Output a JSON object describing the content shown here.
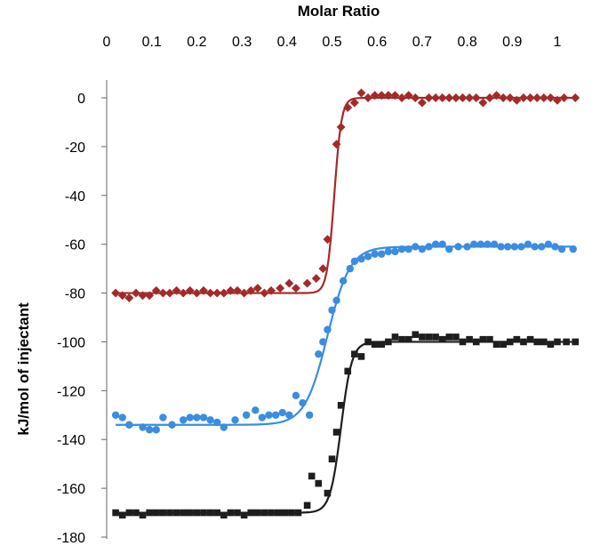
{
  "chart_data": {
    "type": "scatter",
    "title": "",
    "xlabel": "Molar Ratio",
    "ylabel": "kJ/mol of injectant",
    "x_axis_position": "top",
    "xlim": [
      0,
      1.05
    ],
    "ylim": [
      -180,
      5
    ],
    "x_ticks": [
      0,
      0.1,
      0.2,
      0.3,
      0.4,
      0.5,
      0.6,
      0.7,
      0.8,
      0.9,
      1
    ],
    "x_tick_labels": [
      "0",
      "0.1",
      "0.2",
      "0.3",
      "0.4",
      "0.5",
      "0.6",
      "0.7",
      "0.8",
      "0.9",
      "1"
    ],
    "y_ticks": [
      0,
      -20,
      -40,
      -60,
      -80,
      -100,
      -120,
      -140,
      -160,
      -180
    ],
    "y_tick_labels": [
      "0",
      "-20",
      "-40",
      "-60",
      "-80",
      "-100",
      "-120",
      "-140",
      "-160",
      "-180"
    ],
    "grid": false,
    "legend": "none",
    "series": [
      {
        "marker": "diamond",
        "color": "#a32a28",
        "fit": {
          "low": -80,
          "high": 0,
          "mid": 0.505,
          "width": 0.008
        },
        "points": [
          [
            0.02,
            -80
          ],
          [
            0.035,
            -81
          ],
          [
            0.05,
            -82
          ],
          [
            0.065,
            -80
          ],
          [
            0.08,
            -81
          ],
          [
            0.095,
            -81
          ],
          [
            0.11,
            -79
          ],
          [
            0.125,
            -80
          ],
          [
            0.14,
            -80
          ],
          [
            0.155,
            -79
          ],
          [
            0.17,
            -80
          ],
          [
            0.185,
            -79
          ],
          [
            0.2,
            -80
          ],
          [
            0.215,
            -79
          ],
          [
            0.23,
            -80
          ],
          [
            0.245,
            -80
          ],
          [
            0.26,
            -80
          ],
          [
            0.275,
            -79
          ],
          [
            0.29,
            -79
          ],
          [
            0.305,
            -80
          ],
          [
            0.32,
            -79
          ],
          [
            0.335,
            -78
          ],
          [
            0.35,
            -80
          ],
          [
            0.365,
            -79
          ],
          [
            0.385,
            -78
          ],
          [
            0.405,
            -76
          ],
          [
            0.42,
            -78
          ],
          [
            0.445,
            -76
          ],
          [
            0.465,
            -74
          ],
          [
            0.48,
            -70
          ],
          [
            0.49,
            -58
          ],
          [
            0.51,
            -19
          ],
          [
            0.52,
            -12
          ],
          [
            0.535,
            -4
          ],
          [
            0.55,
            -2
          ],
          [
            0.565,
            2
          ],
          [
            0.58,
            0
          ],
          [
            0.595,
            1
          ],
          [
            0.61,
            1
          ],
          [
            0.625,
            1
          ],
          [
            0.64,
            1
          ],
          [
            0.655,
            0
          ],
          [
            0.67,
            1
          ],
          [
            0.685,
            0
          ],
          [
            0.7,
            -2
          ],
          [
            0.715,
            0
          ],
          [
            0.73,
            0
          ],
          [
            0.745,
            0
          ],
          [
            0.76,
            0
          ],
          [
            0.775,
            0
          ],
          [
            0.79,
            0
          ],
          [
            0.805,
            0
          ],
          [
            0.82,
            0
          ],
          [
            0.835,
            -2
          ],
          [
            0.85,
            0
          ],
          [
            0.865,
            1
          ],
          [
            0.88,
            0
          ],
          [
            0.895,
            0
          ],
          [
            0.91,
            -1
          ],
          [
            0.925,
            0
          ],
          [
            0.94,
            0
          ],
          [
            0.955,
            0
          ],
          [
            0.97,
            0
          ],
          [
            0.985,
            0
          ],
          [
            1.0,
            -1
          ],
          [
            1.015,
            0
          ],
          [
            1.04,
            0
          ]
        ]
      },
      {
        "marker": "circle",
        "color": "#3a8de0",
        "fit": {
          "low": -134,
          "high": -61,
          "mid": 0.49,
          "width": 0.025
        },
        "points": [
          [
            0.02,
            -130
          ],
          [
            0.035,
            -131
          ],
          [
            0.05,
            -134
          ],
          [
            0.08,
            -135
          ],
          [
            0.095,
            -136
          ],
          [
            0.11,
            -136
          ],
          [
            0.125,
            -131
          ],
          [
            0.145,
            -134
          ],
          [
            0.17,
            -132
          ],
          [
            0.185,
            -131
          ],
          [
            0.2,
            -131
          ],
          [
            0.215,
            -131
          ],
          [
            0.23,
            -132
          ],
          [
            0.245,
            -133
          ],
          [
            0.26,
            -135
          ],
          [
            0.285,
            -132
          ],
          [
            0.31,
            -130
          ],
          [
            0.33,
            -128
          ],
          [
            0.345,
            -131
          ],
          [
            0.36,
            -130
          ],
          [
            0.375,
            -130
          ],
          [
            0.39,
            -129
          ],
          [
            0.405,
            -130
          ],
          [
            0.42,
            -122
          ],
          [
            0.435,
            -125
          ],
          [
            0.45,
            -130
          ],
          [
            0.47,
            -105
          ],
          [
            0.48,
            -100
          ],
          [
            0.49,
            -95
          ],
          [
            0.5,
            -87
          ],
          [
            0.51,
            -83
          ],
          [
            0.525,
            -75
          ],
          [
            0.54,
            -70
          ],
          [
            0.55,
            -67
          ],
          [
            0.565,
            -66
          ],
          [
            0.58,
            -65
          ],
          [
            0.595,
            -64
          ],
          [
            0.61,
            -64
          ],
          [
            0.625,
            -63
          ],
          [
            0.64,
            -63
          ],
          [
            0.655,
            -62
          ],
          [
            0.67,
            -62
          ],
          [
            0.685,
            -61
          ],
          [
            0.7,
            -62
          ],
          [
            0.715,
            -61
          ],
          [
            0.73,
            -60
          ],
          [
            0.745,
            -60
          ],
          [
            0.76,
            -62
          ],
          [
            0.78,
            -61
          ],
          [
            0.8,
            -61
          ],
          [
            0.815,
            -60
          ],
          [
            0.83,
            -60
          ],
          [
            0.845,
            -60
          ],
          [
            0.86,
            -60
          ],
          [
            0.875,
            -61
          ],
          [
            0.89,
            -61
          ],
          [
            0.905,
            -61
          ],
          [
            0.92,
            -61
          ],
          [
            0.935,
            -60
          ],
          [
            0.95,
            -61
          ],
          [
            0.965,
            -61
          ],
          [
            0.98,
            -60
          ],
          [
            0.995,
            -61
          ],
          [
            1.01,
            -62
          ],
          [
            1.035,
            -62
          ]
        ]
      },
      {
        "marker": "square",
        "color": "#1e1e1e",
        "fit": {
          "low": -170,
          "high": -100,
          "mid": 0.52,
          "width": 0.012
        },
        "points": [
          [
            0.02,
            -170
          ],
          [
            0.035,
            -171
          ],
          [
            0.05,
            -170
          ],
          [
            0.065,
            -170
          ],
          [
            0.08,
            -171
          ],
          [
            0.095,
            -170
          ],
          [
            0.11,
            -170
          ],
          [
            0.125,
            -170
          ],
          [
            0.14,
            -170
          ],
          [
            0.155,
            -170
          ],
          [
            0.17,
            -170
          ],
          [
            0.185,
            -170
          ],
          [
            0.2,
            -170
          ],
          [
            0.215,
            -170
          ],
          [
            0.23,
            -170
          ],
          [
            0.245,
            -170
          ],
          [
            0.26,
            -171
          ],
          [
            0.275,
            -170
          ],
          [
            0.29,
            -170
          ],
          [
            0.305,
            -171
          ],
          [
            0.32,
            -170
          ],
          [
            0.335,
            -170
          ],
          [
            0.35,
            -170
          ],
          [
            0.365,
            -170
          ],
          [
            0.38,
            -170
          ],
          [
            0.395,
            -170
          ],
          [
            0.41,
            -170
          ],
          [
            0.425,
            -170
          ],
          [
            0.445,
            -167
          ],
          [
            0.455,
            -155
          ],
          [
            0.47,
            -158
          ],
          [
            0.49,
            -162
          ],
          [
            0.5,
            -148
          ],
          [
            0.51,
            -137
          ],
          [
            0.52,
            -126
          ],
          [
            0.535,
            -112
          ],
          [
            0.55,
            -105
          ],
          [
            0.565,
            -106
          ],
          [
            0.58,
            -100
          ],
          [
            0.595,
            -101
          ],
          [
            0.61,
            -101
          ],
          [
            0.625,
            -100
          ],
          [
            0.64,
            -98
          ],
          [
            0.655,
            -99
          ],
          [
            0.67,
            -99
          ],
          [
            0.685,
            -97
          ],
          [
            0.7,
            -98
          ],
          [
            0.715,
            -98
          ],
          [
            0.73,
            -98
          ],
          [
            0.745,
            -99
          ],
          [
            0.76,
            -98
          ],
          [
            0.775,
            -98
          ],
          [
            0.79,
            -100
          ],
          [
            0.805,
            -99
          ],
          [
            0.82,
            -100
          ],
          [
            0.835,
            -99
          ],
          [
            0.85,
            -99
          ],
          [
            0.865,
            -101
          ],
          [
            0.88,
            -101
          ],
          [
            0.895,
            -100
          ],
          [
            0.91,
            -99
          ],
          [
            0.925,
            -100
          ],
          [
            0.94,
            -99
          ],
          [
            0.955,
            -100
          ],
          [
            0.97,
            -100
          ],
          [
            0.985,
            -101
          ],
          [
            1.0,
            -100
          ],
          [
            1.02,
            -100
          ],
          [
            1.04,
            -100
          ]
        ]
      }
    ]
  }
}
